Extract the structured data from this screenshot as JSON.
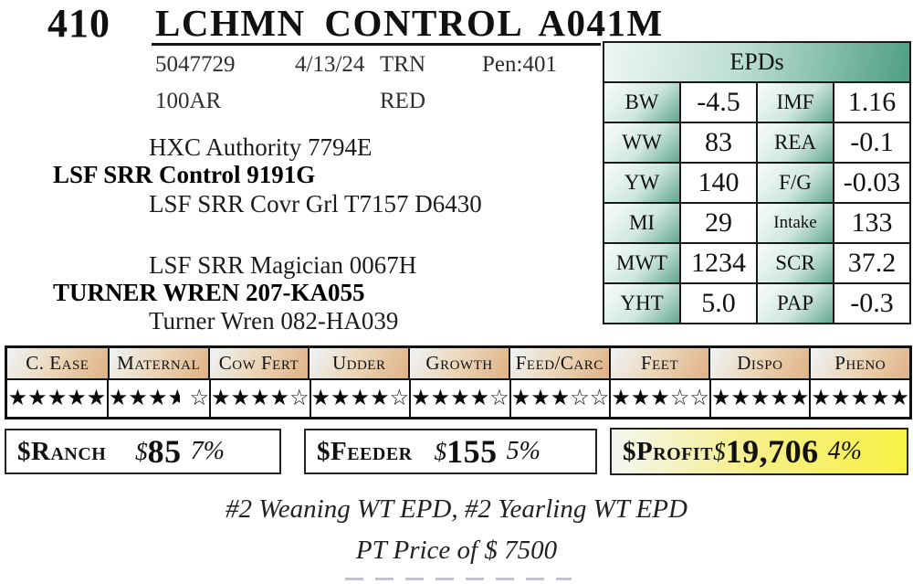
{
  "header": {
    "lot": "410",
    "title": "LCHMN CONTROL A041M"
  },
  "registration": {
    "reg_number": "5047729",
    "birth_date": "4/13/24",
    "code": "TRN",
    "pen": "Pen:401",
    "breed": "100AR",
    "color": "RED"
  },
  "pedigree": {
    "paternal_grandsire": "HXC Authority 7794E",
    "sire": "LSF SRR Control 9191G",
    "paternal_granddam": "LSF SRR Covr Grl T7157 D6430",
    "maternal_grandsire": "LSF SRR Magician 0067H",
    "dam": "TURNER WREN 207-KA055",
    "maternal_granddam": "Turner Wren 082-HA039"
  },
  "epds": {
    "title": "EPDs",
    "rows": [
      {
        "l1": "BW",
        "v1": "-4.5",
        "l2": "IMF",
        "v2": "1.16"
      },
      {
        "l1": "WW",
        "v1": "83",
        "l2": "REA",
        "v2": "-0.1"
      },
      {
        "l1": "YW",
        "v1": "140",
        "l2": "F/G",
        "v2": "-0.03"
      },
      {
        "l1": "MI",
        "v1": "29",
        "l2": "Intake",
        "v2": "133"
      },
      {
        "l1": "MWT",
        "v1": "1234",
        "l2": "SCR",
        "v2": "37.2"
      },
      {
        "l1": "YHT",
        "v1": "5.0",
        "l2": "PAP",
        "v2": "-0.3"
      }
    ]
  },
  "ratings": {
    "max_stars": 5,
    "columns": [
      {
        "label": "C. Ease",
        "stars": 5
      },
      {
        "label": "Maternal",
        "stars": 3.5
      },
      {
        "label": "Cow Fert",
        "stars": 4
      },
      {
        "label": "Udder",
        "stars": 4
      },
      {
        "label": "Growth",
        "stars": 4
      },
      {
        "label": "Feed/Carc",
        "stars": 3
      },
      {
        "label": "Feet",
        "stars": 3
      },
      {
        "label": "Dispo",
        "stars": 5
      },
      {
        "label": "Pheno",
        "stars": 5
      }
    ]
  },
  "values": {
    "ranch": {
      "label": "$Ranch",
      "currency": "$",
      "amount": "85",
      "pct": "7%"
    },
    "feeder": {
      "label": "$Feeder",
      "currency": "$",
      "amount": "155",
      "pct": "5%"
    },
    "profit": {
      "label": "$Profit",
      "currency": "$",
      "amount": "19,706",
      "pct": "4%"
    }
  },
  "notes": {
    "line1": "#2 Weaning WT EPD, #2 Yearling WT EPD",
    "line2": "PT Price of $ 7500"
  },
  "colors": {
    "teal": "#4f9e86",
    "tan": "#e0b184",
    "profit_yellow": "#f8f245"
  }
}
